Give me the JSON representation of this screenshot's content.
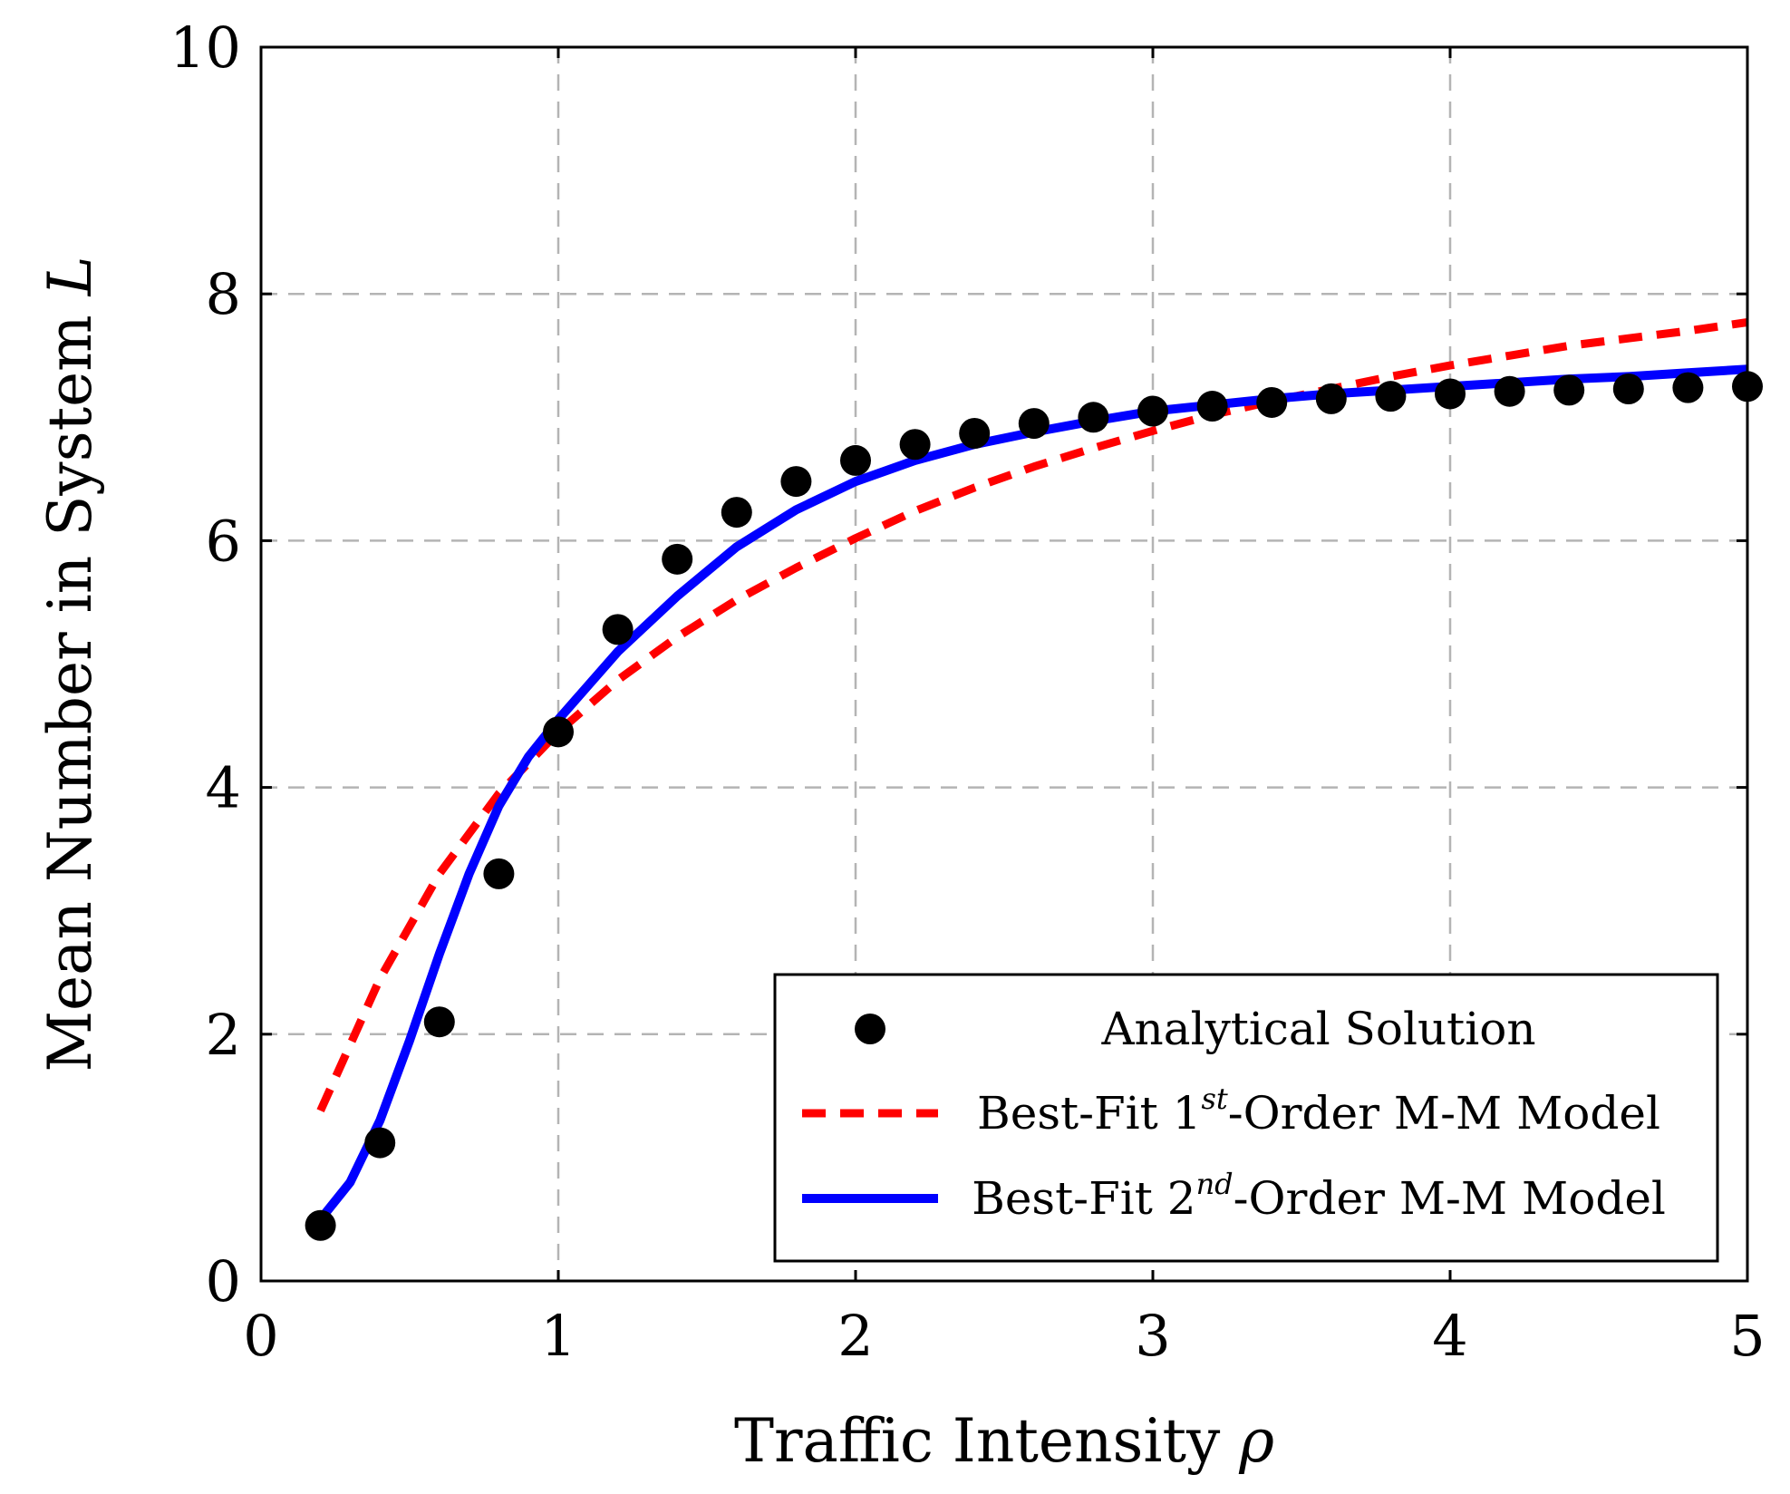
{
  "chart_data": {
    "type": "line",
    "title": "",
    "xlabel": "Traffic Intensity",
    "xlabel_symbol": "ρ",
    "ylabel": "Mean Number in System",
    "ylabel_symbol": "L",
    "xlim": [
      0,
      5
    ],
    "ylim": [
      0,
      10
    ],
    "xticks": [
      0,
      1,
      2,
      3,
      4,
      5
    ],
    "yticks": [
      0,
      2,
      4,
      6,
      8,
      10
    ],
    "grid": true,
    "legend_position": "bottom-right",
    "series": [
      {
        "name": "Analytical Solution",
        "style": "markers",
        "color": "#000000",
        "x": [
          0.2,
          0.4,
          0.6,
          0.8,
          1.0,
          1.2,
          1.4,
          1.6,
          1.8,
          2.0,
          2.2,
          2.4,
          2.6,
          2.8,
          3.0,
          3.2,
          3.4,
          3.6,
          3.8,
          4.0,
          4.2,
          4.4,
          4.6,
          4.8,
          5.0
        ],
        "y": [
          0.45,
          1.12,
          2.1,
          3.3,
          4.45,
          5.28,
          5.85,
          6.23,
          6.48,
          6.65,
          6.78,
          6.87,
          6.95,
          7.0,
          7.05,
          7.09,
          7.12,
          7.15,
          7.17,
          7.19,
          7.21,
          7.22,
          7.23,
          7.24,
          7.25
        ]
      },
      {
        "name": "Best-Fit 1st-Order M-M Model",
        "legend_prefix": "Best-Fit 1",
        "legend_sup": "st",
        "legend_suffix": "-Order M-M Model",
        "style": "dashed",
        "color": "#ff0000",
        "x": [
          0.2,
          0.4,
          0.6,
          0.8,
          1.0,
          1.2,
          1.4,
          1.6,
          1.8,
          2.0,
          2.2,
          2.4,
          2.6,
          2.8,
          3.0,
          3.2,
          3.4,
          3.6,
          3.8,
          4.0,
          4.2,
          4.4,
          4.6,
          4.8,
          5.0
        ],
        "y": [
          1.38,
          2.45,
          3.3,
          3.95,
          4.45,
          4.87,
          5.22,
          5.52,
          5.78,
          6.02,
          6.24,
          6.43,
          6.6,
          6.75,
          6.89,
          7.02,
          7.13,
          7.23,
          7.33,
          7.42,
          7.5,
          7.58,
          7.64,
          7.7,
          7.77
        ]
      },
      {
        "name": "Best-Fit 2nd-Order M-M Model",
        "legend_prefix": "Best-Fit 2",
        "legend_sup": "nd",
        "legend_suffix": "-Order M-M Model",
        "style": "solid",
        "color": "#0000ff",
        "x": [
          0.2,
          0.3,
          0.4,
          0.5,
          0.6,
          0.7,
          0.8,
          0.9,
          1.0,
          1.2,
          1.4,
          1.6,
          1.8,
          2.0,
          2.2,
          2.4,
          2.6,
          2.8,
          3.0,
          3.2,
          3.4,
          3.6,
          3.8,
          4.0,
          4.2,
          4.4,
          4.6,
          4.8,
          5.0
        ],
        "y": [
          0.5,
          0.8,
          1.3,
          1.95,
          2.65,
          3.3,
          3.85,
          4.25,
          4.55,
          5.1,
          5.55,
          5.95,
          6.25,
          6.48,
          6.65,
          6.78,
          6.88,
          6.97,
          7.05,
          7.1,
          7.15,
          7.19,
          7.22,
          7.25,
          7.28,
          7.31,
          7.33,
          7.36,
          7.39
        ]
      }
    ]
  }
}
